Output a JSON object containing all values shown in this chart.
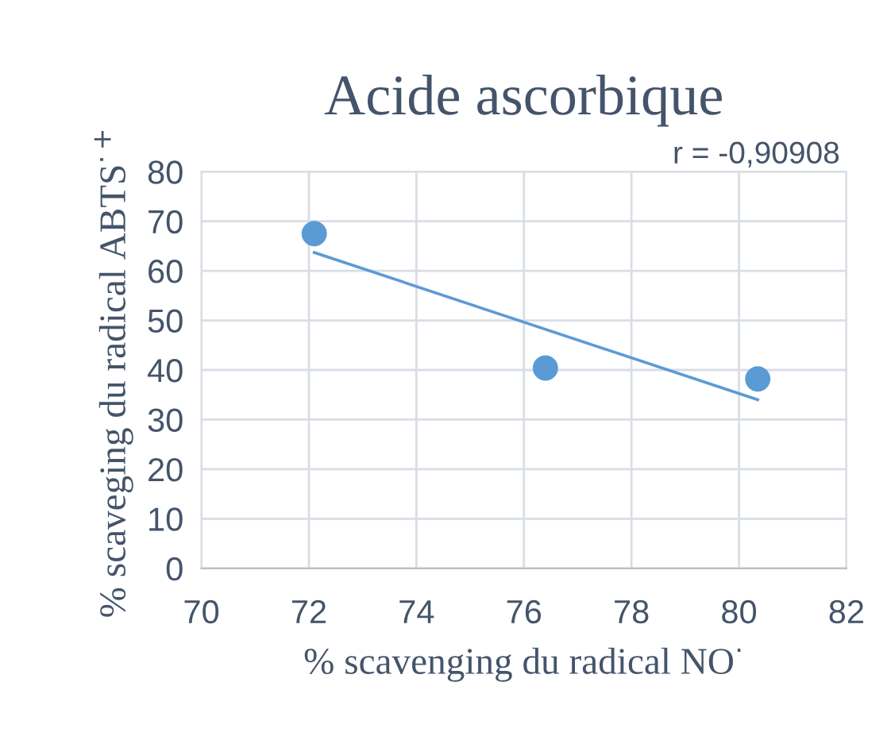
{
  "chart_data": {
    "type": "scatter",
    "title": "Acide ascorbique",
    "xlabel": "% scavenging du radical NO$^{·}$",
    "ylabel": "% scaveging du radical ABTS$^{·+}$",
    "series": [
      {
        "color": "#5b9bd5",
        "marker": "circle",
        "x": [
          72.1,
          76.4,
          80.35
        ],
        "values": [
          67.5,
          40.4,
          38.2
        ]
      },
      {
        "type": "line",
        "marker": "none",
        "color": "#5b9bd5",
        "x": [
          72.1,
          80.35
        ],
        "values": [
          63.7,
          34
        ]
      }
    ],
    "xlim": [
      70,
      82
    ],
    "xticks": [
      70,
      72,
      74,
      76,
      78,
      80,
      82
    ],
    "ylim": [
      0,
      80
    ],
    "yticks": [
      0,
      10,
      20,
      30,
      40,
      50,
      60,
      70,
      80
    ],
    "grid": true,
    "annotations": [
      "r = -0,90908"
    ]
  }
}
